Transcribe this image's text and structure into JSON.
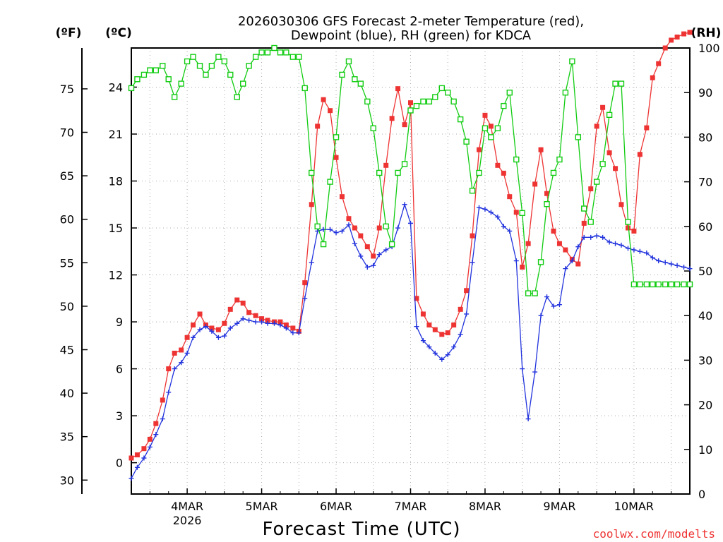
{
  "chart_data": {
    "type": "line",
    "title_lines": [
      "2026030306 GFS Forecast 2-meter Temperature (red),",
      "Dewpoint (blue), RH (green) for KDCA"
    ],
    "xlabel": "Forecast Time (UTC)",
    "watermark": "coolwx.com/modelts",
    "x_unit": "days since 2026-03-03 00 UTC",
    "xlim": [
      3.25,
      10.75
    ],
    "x_ticks": [
      {
        "x": 4,
        "label": "4MAR",
        "sublabel": "2026"
      },
      {
        "x": 5,
        "label": "5MAR"
      },
      {
        "x": 6,
        "label": "6MAR"
      },
      {
        "x": 7,
        "label": "7MAR"
      },
      {
        "x": 8,
        "label": "8MAR"
      },
      {
        "x": 9,
        "label": "9MAR"
      },
      {
        "x": 10,
        "label": "10MAR"
      }
    ],
    "y_left_f": {
      "label": "(ºF)",
      "ticks": [
        30,
        35,
        40,
        45,
        50,
        55,
        60,
        65,
        70,
        75
      ]
    },
    "y_left_c": {
      "label": "(ºC)",
      "ylim": [
        -2,
        26.5
      ],
      "ticks": [
        0,
        3,
        6,
        9,
        12,
        15,
        18,
        21,
        24
      ]
    },
    "y_right_rh": {
      "label": "(RH)",
      "ylim": [
        0,
        100
      ],
      "ticks": [
        0,
        10,
        20,
        30,
        40,
        50,
        60,
        70,
        80,
        90,
        100
      ]
    },
    "colors": {
      "temperature": "#ee3333",
      "dewpoint": "#2233dd",
      "rh": "#11cc11",
      "grid": "#aaaaaa"
    },
    "series": [
      {
        "name": "Temperature",
        "unit": "°C",
        "marker": "filled-square",
        "x": [
          3.25,
          3.33,
          3.42,
          3.5,
          3.58,
          3.67,
          3.75,
          3.83,
          3.92,
          4.0,
          4.08,
          4.17,
          4.25,
          4.33,
          4.42,
          4.5,
          4.58,
          4.67,
          4.75,
          4.83,
          4.92,
          5.0,
          5.08,
          5.17,
          5.25,
          5.33,
          5.42,
          5.5,
          5.58,
          5.67,
          5.75,
          5.83,
          5.92,
          6.0,
          6.08,
          6.17,
          6.25,
          6.33,
          6.42,
          6.5,
          6.58,
          6.67,
          6.75,
          6.83,
          6.92,
          7.0,
          7.08,
          7.17,
          7.25,
          7.33,
          7.42,
          7.5,
          7.58,
          7.67,
          7.75,
          7.83,
          7.92,
          8.0,
          8.08,
          8.17,
          8.25,
          8.33,
          8.42,
          8.5,
          8.58,
          8.67,
          8.75,
          8.83,
          8.92,
          9.0,
          9.08,
          9.17,
          9.25,
          9.33,
          9.42,
          9.5,
          9.58,
          9.67,
          9.75,
          9.83,
          9.92,
          10.0,
          10.08,
          10.17,
          10.25,
          10.33,
          10.42,
          10.5,
          10.58,
          10.67,
          10.75
        ],
        "values": [
          0.3,
          0.5,
          0.9,
          1.5,
          2.5,
          4.0,
          6.0,
          7.0,
          7.2,
          8.0,
          8.8,
          9.5,
          8.8,
          8.6,
          8.5,
          8.9,
          9.8,
          10.4,
          10.2,
          9.6,
          9.4,
          9.2,
          9.1,
          9.0,
          9.0,
          8.8,
          8.6,
          8.4,
          11.5,
          16.5,
          21.5,
          23.2,
          22.5,
          19.5,
          17.0,
          15.6,
          15.0,
          14.5,
          13.8,
          13.2,
          15.0,
          19.0,
          22.0,
          23.9,
          21.6,
          23.0,
          10.5,
          9.5,
          8.8,
          8.5,
          8.2,
          8.3,
          8.8,
          9.8,
          11.0,
          14.5,
          20.0,
          22.2,
          21.5,
          19.0,
          18.5,
          17.0,
          16.0,
          12.5,
          14.0,
          17.8,
          20.0,
          17.2,
          14.8,
          14.0,
          13.6,
          13.0,
          12.7,
          15.3,
          17.5,
          21.5,
          22.7,
          19.8,
          18.8,
          16.5,
          15.0,
          14.8,
          19.7,
          21.4,
          24.6,
          25.5,
          26.5,
          27.0,
          27.2,
          27.4,
          27.5
        ]
      },
      {
        "name": "Dewpoint",
        "unit": "°C",
        "marker": "plus",
        "x": [
          3.25,
          3.33,
          3.42,
          3.5,
          3.58,
          3.67,
          3.75,
          3.83,
          3.92,
          4.0,
          4.08,
          4.17,
          4.25,
          4.33,
          4.42,
          4.5,
          4.58,
          4.67,
          4.75,
          4.83,
          4.92,
          5.0,
          5.08,
          5.17,
          5.25,
          5.33,
          5.42,
          5.5,
          5.58,
          5.67,
          5.75,
          5.83,
          5.92,
          6.0,
          6.08,
          6.17,
          6.25,
          6.33,
          6.42,
          6.5,
          6.58,
          6.67,
          6.75,
          6.83,
          6.92,
          7.0,
          7.08,
          7.17,
          7.25,
          7.33,
          7.42,
          7.5,
          7.58,
          7.67,
          7.75,
          7.83,
          7.92,
          8.0,
          8.08,
          8.17,
          8.25,
          8.33,
          8.42,
          8.5,
          8.58,
          8.67,
          8.75,
          8.83,
          8.92,
          9.0,
          9.08,
          9.17,
          9.25,
          9.33,
          9.42,
          9.5,
          9.58,
          9.67,
          9.75,
          9.83,
          9.92,
          10.0,
          10.08,
          10.17,
          10.25,
          10.33,
          10.42,
          10.5,
          10.58,
          10.67,
          10.75
        ],
        "values": [
          -1.0,
          -0.3,
          0.3,
          1.0,
          1.8,
          2.8,
          4.5,
          6.0,
          6.4,
          7.0,
          8.0,
          8.5,
          8.7,
          8.4,
          8.0,
          8.1,
          8.6,
          8.9,
          9.2,
          9.1,
          9.0,
          9.0,
          8.9,
          8.9,
          8.8,
          8.6,
          8.3,
          8.3,
          10.5,
          12.8,
          14.8,
          14.9,
          14.9,
          14.7,
          14.8,
          15.2,
          14.0,
          13.2,
          12.5,
          12.6,
          13.3,
          13.6,
          13.8,
          15.0,
          16.5,
          15.3,
          8.7,
          7.8,
          7.4,
          7.0,
          6.6,
          6.9,
          7.4,
          8.2,
          9.5,
          12.8,
          16.3,
          16.2,
          16.0,
          15.7,
          15.1,
          14.8,
          12.9,
          6.0,
          2.8,
          5.8,
          9.4,
          10.6,
          10.0,
          10.1,
          12.4,
          12.9,
          13.8,
          14.4,
          14.4,
          14.5,
          14.4,
          14.1,
          14.0,
          13.9,
          13.7,
          13.6,
          13.5,
          13.4,
          13.1,
          12.9,
          12.8,
          12.7,
          12.6,
          12.5,
          12.4
        ]
      },
      {
        "name": "RH",
        "unit": "%",
        "marker": "open-square",
        "x": [
          3.25,
          3.33,
          3.42,
          3.5,
          3.58,
          3.67,
          3.75,
          3.83,
          3.92,
          4.0,
          4.08,
          4.17,
          4.25,
          4.33,
          4.42,
          4.5,
          4.58,
          4.67,
          4.75,
          4.83,
          4.92,
          5.0,
          5.08,
          5.17,
          5.25,
          5.33,
          5.42,
          5.5,
          5.58,
          5.67,
          5.75,
          5.83,
          5.92,
          6.0,
          6.08,
          6.17,
          6.25,
          6.33,
          6.42,
          6.5,
          6.58,
          6.67,
          6.75,
          6.83,
          6.92,
          7.0,
          7.08,
          7.17,
          7.25,
          7.33,
          7.42,
          7.5,
          7.58,
          7.67,
          7.75,
          7.83,
          7.92,
          8.0,
          8.08,
          8.17,
          8.25,
          8.33,
          8.42,
          8.5,
          8.58,
          8.67,
          8.75,
          8.83,
          8.92,
          9.0,
          9.08,
          9.17,
          9.25,
          9.33,
          9.42,
          9.5,
          9.58,
          9.67,
          9.75,
          9.83,
          9.92,
          10.0,
          10.08,
          10.17,
          10.25,
          10.33,
          10.42,
          10.5,
          10.58,
          10.67,
          10.75
        ],
        "values": [
          91,
          93,
          94,
          95,
          95,
          96,
          93,
          89,
          92,
          97,
          98,
          96,
          94,
          96,
          98,
          97,
          94,
          89,
          92,
          96,
          98,
          99,
          99,
          100,
          99,
          99,
          98,
          98,
          91,
          72,
          60,
          56,
          70,
          80,
          94,
          97,
          93,
          92,
          88,
          82,
          72,
          60,
          56,
          72,
          74,
          86,
          87,
          88,
          88,
          89,
          91,
          90,
          88,
          84,
          79,
          68,
          72,
          82,
          80,
          82,
          87,
          90,
          75,
          63,
          45,
          45,
          52,
          65,
          72,
          75,
          90,
          97,
          80,
          64,
          61,
          70,
          74,
          85,
          92,
          92,
          61,
          47,
          47,
          47,
          47,
          47,
          47,
          47,
          47,
          47,
          47
        ]
      }
    ]
  }
}
